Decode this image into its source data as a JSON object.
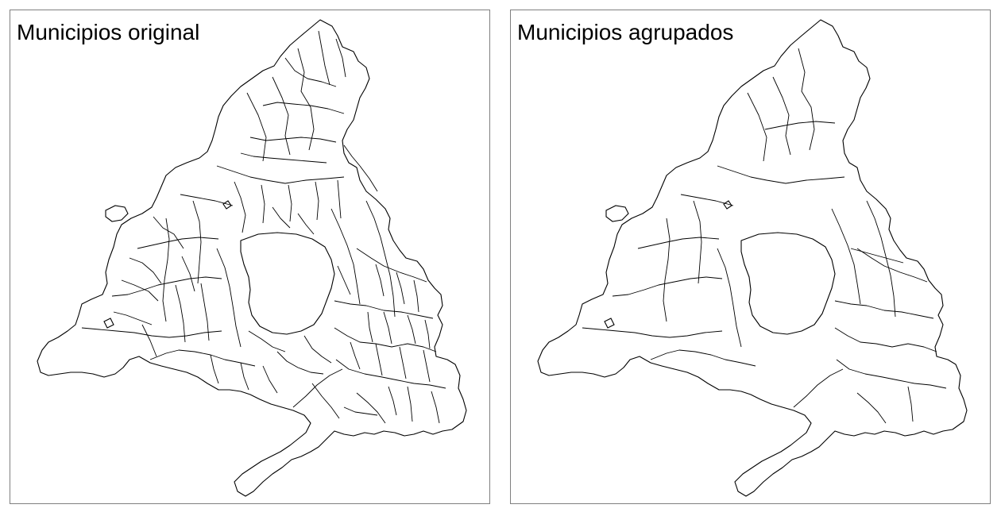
{
  "panels": [
    {
      "title": "Municipios original",
      "variant": "original"
    },
    {
      "title": "Municipios agrupados",
      "variant": "grouped"
    }
  ],
  "map": {
    "line_color": "#000000",
    "background_color": "#ffffff",
    "frame_color": "#7f7f7f"
  }
}
